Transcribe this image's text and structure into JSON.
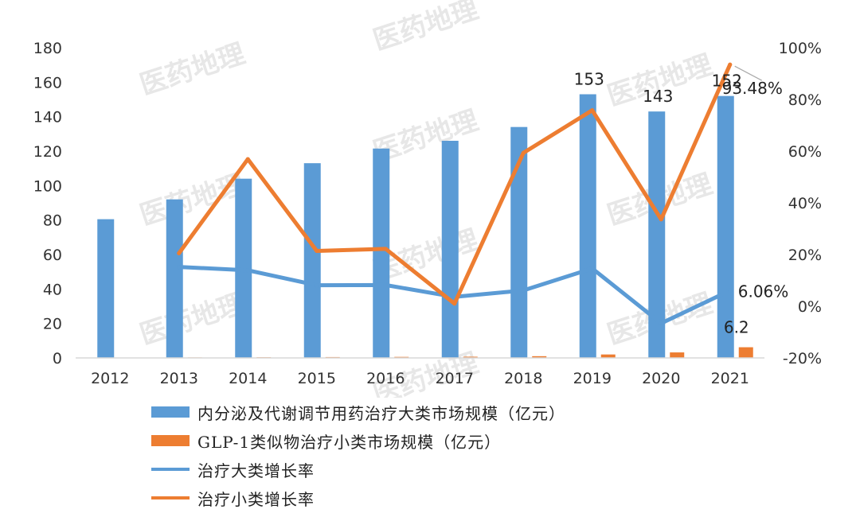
{
  "chart_data": {
    "type": "bar",
    "categories": [
      "2012",
      "2013",
      "2014",
      "2015",
      "2016",
      "2017",
      "2018",
      "2019",
      "2020",
      "2021"
    ],
    "y_left_ticks": [
      "0",
      "20",
      "40",
      "60",
      "80",
      "100",
      "120",
      "140",
      "160",
      "180"
    ],
    "y_right_ticks": [
      "-20%",
      "0%",
      "20%",
      "40%",
      "60%",
      "80%",
      "100%"
    ],
    "ylim_left": [
      0,
      180
    ],
    "ylim_right": [
      -20,
      100
    ],
    "series": [
      {
        "name": "内分泌及代谢调节用药治疗大类市场规模（亿元）",
        "kind": "bar",
        "axis": "left",
        "color": "#5b9bd5",
        "values": [
          80.5,
          92,
          104,
          113,
          121.5,
          126,
          134,
          153,
          143,
          152
        ]
      },
      {
        "name": "GLP-1类似物治疗小类市场规模（亿元）",
        "kind": "bar",
        "axis": "left",
        "color": "#ed7d31",
        "values": [
          0,
          0.3,
          0.4,
          0.5,
          0.6,
          0.7,
          1.0,
          2.0,
          3.2,
          6.2
        ]
      },
      {
        "name": "治疗大类增长率",
        "kind": "line",
        "axis": "right",
        "color": "#5b9bd5",
        "values": [
          null,
          15.2,
          13.9,
          8.1,
          8.2,
          3.6,
          6.1,
          14.6,
          -6.6,
          6.06
        ]
      },
      {
        "name": "治疗小类增长率",
        "kind": "line",
        "axis": "right",
        "color": "#ed7d31",
        "values": [
          null,
          20.5,
          56.9,
          21.4,
          22.2,
          1.0,
          59.3,
          75.8,
          33.6,
          93.48
        ]
      }
    ],
    "data_labels": [
      {
        "series": 0,
        "index": 7,
        "text": "153"
      },
      {
        "series": 0,
        "index": 8,
        "text": "143"
      },
      {
        "series": 0,
        "index": 9,
        "text": "152"
      },
      {
        "series": 1,
        "index": 9,
        "text": "6.2"
      },
      {
        "series": 2,
        "index": 9,
        "text": "6.06%"
      },
      {
        "series": 3,
        "index": 9,
        "text": "93.48%"
      }
    ],
    "legend_position": "bottom",
    "grid": false
  },
  "watermark": "医药地理"
}
